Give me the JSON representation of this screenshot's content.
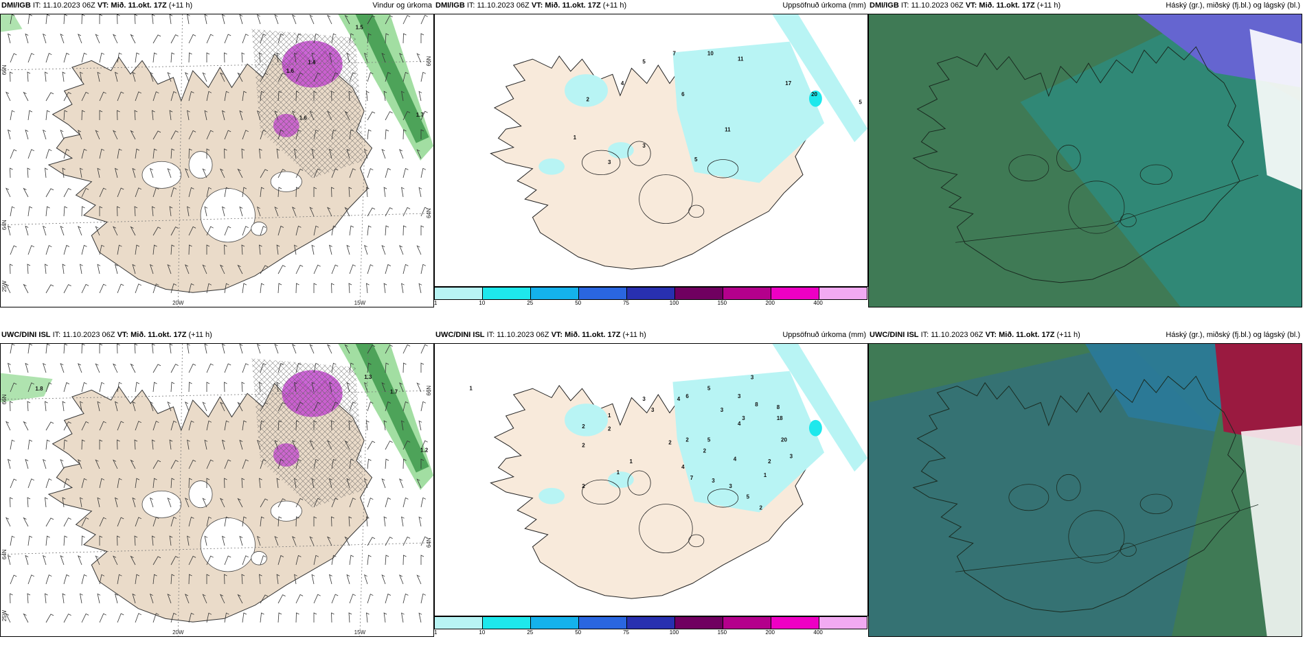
{
  "colorbar": {
    "ticks": [
      "1",
      "10",
      "25",
      "50",
      "75",
      "100",
      "150",
      "200",
      "400"
    ],
    "colors": [
      "#b8f4f4",
      "#1ee8ec",
      "#14b2ec",
      "#2a66e0",
      "#2830b0",
      "#700060",
      "#b4008c",
      "#ee00c4",
      "#f2aaf2"
    ]
  },
  "colors": {
    "land": "#f8eadb",
    "wind_land": "#eadbc9",
    "precip_light": "#b8f4f4",
    "precip_mid": "#1ee8ec",
    "cloud_green": "#3f7a55",
    "cloud_teal": "#2f8a7a",
    "cloud_blue": "#6565d0",
    "cloud_red": "#9a1a40",
    "rain_green": "#7ad07a",
    "rain_magenta": "#c44ad0"
  },
  "panels": [
    {
      "model": "DMI/IGB",
      "it_label": "IT:",
      "it_value": "11.10.2023 06Z",
      "vt_label": "VT:",
      "vt_value": "Mið. 11.okt. 17Z",
      "lead": "(+11 h)",
      "title": "Vindur og úrkoma",
      "axis": {
        "lon20": "20W",
        "lon15": "15W",
        "lat66": "66N",
        "lat64": "64N",
        "lat25w": "25W",
        "lat66r": "66N",
        "lat64r": "64N"
      },
      "values": [
        "1.4",
        "1.6",
        "1.6",
        "1.7",
        "1.5"
      ]
    },
    {
      "model": "DMI/IGB",
      "it_label": "IT:",
      "it_value": "11.10.2023 06Z",
      "vt_label": "VT:",
      "vt_value": "Mið. 11.okt. 17Z",
      "lead": "(+11 h)",
      "title": "Uppsöfnuð úrkoma (mm)",
      "values": [
        "5",
        "7",
        "10",
        "11",
        "4",
        "6",
        "2",
        "17",
        "20",
        "5",
        "1",
        "3",
        "5",
        "11",
        "3"
      ]
    },
    {
      "model": "DMI/IGB",
      "it_label": "IT:",
      "it_value": "11.10.2023 06Z",
      "vt_label": "VT:",
      "vt_value": "Mið. 11.okt. 17Z",
      "lead": "(+11 h)",
      "title": "Háský (gr.), miðský (fj.bl.) og lágský (bl.)"
    },
    {
      "model": "UWC/DINI ISL",
      "it_label": "IT:",
      "it_value": "11.10.2023 06Z",
      "vt_label": "VT:",
      "vt_value": "Mið. 11.okt. 17Z",
      "lead": "(+11 h)",
      "title": "",
      "axis": {
        "lon20": "20W",
        "lon15": "15W",
        "lat66": "66N",
        "lat64": "64N",
        "lat25w": "25W",
        "lat66r": "66N",
        "lat64r": "64N"
      },
      "values": [
        "1.8",
        "1.3",
        "1.7",
        "1.2"
      ]
    },
    {
      "model": "UWC/DINI ISL",
      "it_label": "IT:",
      "it_value": "11.10.2023 06Z",
      "vt_label": "VT:",
      "vt_value": "Mið. 11.okt. 17Z",
      "lead": "(+11 h)",
      "title": "Uppsöfnuð úrkoma (mm)",
      "values": [
        "1",
        "3",
        "3",
        "4",
        "6",
        "5",
        "3",
        "3",
        "3",
        "1",
        "2",
        "3",
        "8",
        "8",
        "4",
        "2",
        "5",
        "4",
        "2",
        "18",
        "20",
        "2",
        "3",
        "2",
        "7",
        "1",
        "2",
        "4",
        "2",
        "1",
        "1",
        "3",
        "3",
        "5",
        "2",
        "2"
      ]
    },
    {
      "model": "UWC/DINI ISL",
      "it_label": "IT:",
      "it_value": "11.10.2023 06Z",
      "vt_label": "VT:",
      "vt_value": "Mið. 11.okt. 17Z",
      "lead": "(+11 h)",
      "title": "Háský (gr.), miðský (fj.bl.) og lágský (bl.)"
    }
  ]
}
